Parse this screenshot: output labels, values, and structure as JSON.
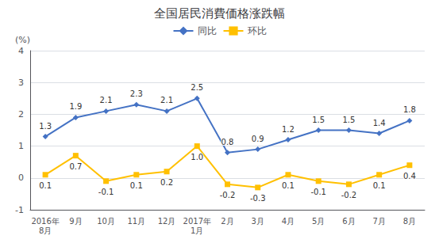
{
  "chart_data": {
    "type": "line",
    "title": "全国居民消費価格涨跌幅",
    "ylabel": "(%)",
    "categories": [
      "2016年\n8月",
      "9月",
      "10月",
      "11月",
      "12月",
      "2017年\n1月",
      "2月",
      "3月",
      "4月",
      "5月",
      "6月",
      "7月",
      "8月"
    ],
    "series": [
      {
        "name": "同比",
        "color": "#4472C4",
        "marker": "diamond",
        "values": [
          1.3,
          1.9,
          2.1,
          2.3,
          2.1,
          2.5,
          0.8,
          0.9,
          1.2,
          1.5,
          1.5,
          1.4,
          1.8
        ]
      },
      {
        "name": "环比",
        "color": "#FFC000",
        "marker": "square",
        "values": [
          0.1,
          0.7,
          -0.1,
          0.1,
          0.2,
          1.0,
          -0.2,
          -0.3,
          0.1,
          -0.1,
          -0.2,
          0.1,
          0.4
        ],
        "value_labels": [
          "0.1",
          "0.7",
          "-0.1",
          "0.1",
          "0.2",
          "1.0",
          "-0.2",
          "-0.3",
          "0.1",
          "-0.1",
          "-0.2",
          "0.1",
          "0.4"
        ]
      }
    ],
    "ylim": [
      -1,
      4
    ],
    "yticks": [
      -1,
      0,
      1,
      2,
      3,
      4
    ],
    "grid": true,
    "legend": "top",
    "data_labels": true
  }
}
